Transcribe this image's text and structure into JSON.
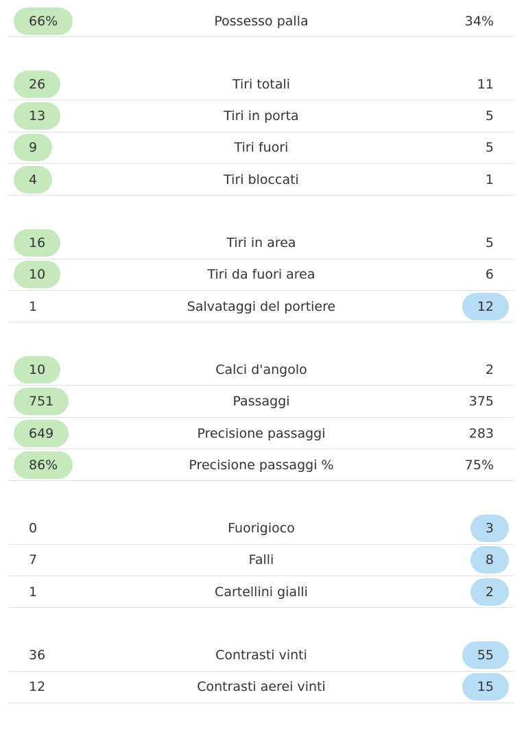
{
  "groups": [
    {
      "rows": [
        {
          "home": "66%",
          "label": "Possesso palla",
          "away": "34%"
        }
      ]
    },
    {
      "rows": [
        {
          "home": "26",
          "label": "Tiri totali",
          "away": "11"
        },
        {
          "home": "13",
          "label": "Tiri in porta",
          "away": "5"
        },
        {
          "home": "9",
          "label": "Tiri fuori",
          "away": "5"
        },
        {
          "home": "4",
          "label": "Tiri bloccati",
          "away": "1"
        }
      ]
    },
    {
      "rows": [
        {
          "home": "16",
          "label": "Tiri in area",
          "away": "5"
        },
        {
          "home": "10",
          "label": "Tiri da fuori area",
          "away": "6"
        },
        {
          "home": "1",
          "label": "Salvataggi del portiere",
          "away": "12"
        }
      ]
    },
    {
      "rows": [
        {
          "home": "10",
          "label": "Calci d'angolo",
          "away": "2"
        },
        {
          "home": "751",
          "label": "Passaggi",
          "away": "375"
        },
        {
          "home": "649",
          "label": "Precisione passaggi",
          "away": "283"
        },
        {
          "home": "86%",
          "label": "Precisione passaggi %",
          "away": "75%"
        }
      ]
    },
    {
      "rows": [
        {
          "home": "0",
          "label": "Fuorigioco",
          "away": "3"
        },
        {
          "home": "7",
          "label": "Falli",
          "away": "8"
        },
        {
          "home": "1",
          "label": "Cartellini gialli",
          "away": "2"
        }
      ]
    },
    {
      "rows": [
        {
          "home": "36",
          "label": "Contrasti vinti",
          "away": "55"
        },
        {
          "home": "12",
          "label": "Contrasti aerei vinti",
          "away": "15"
        }
      ]
    }
  ]
}
